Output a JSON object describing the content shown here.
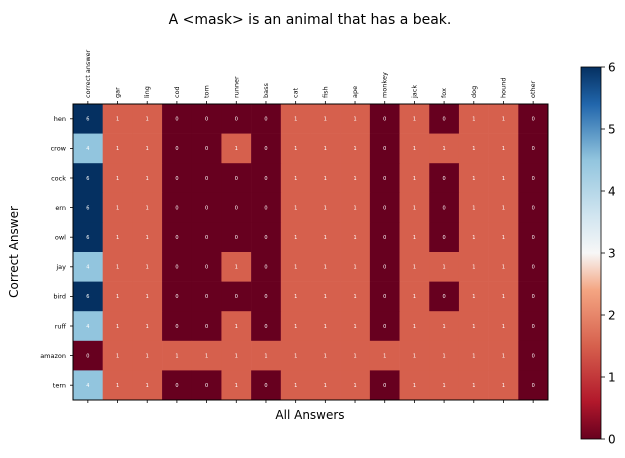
{
  "chart_data": {
    "type": "heatmap",
    "title": "A <mask> is an animal that has a beak.",
    "xlabel": "All Answers",
    "ylabel": "Correct Answer",
    "x_categories": [
      "correct answer",
      "gar",
      "ling",
      "cod",
      "tom",
      "runner",
      "bass",
      "cat",
      "fish",
      "ape",
      "monkey",
      "jack",
      "fox",
      "dog",
      "hound",
      "other"
    ],
    "y_categories": [
      "hen",
      "crow",
      "cock",
      "ern",
      "owl",
      "jay",
      "bird",
      "ruff",
      "amazon",
      "tern"
    ],
    "values": [
      [
        6,
        1,
        1,
        0,
        0,
        0,
        0,
        1,
        1,
        1,
        0,
        1,
        0,
        1,
        1,
        0
      ],
      [
        4,
        1,
        1,
        0,
        0,
        1,
        0,
        1,
        1,
        1,
        0,
        1,
        1,
        1,
        1,
        0
      ],
      [
        6,
        1,
        1,
        0,
        0,
        0,
        0,
        1,
        1,
        1,
        0,
        1,
        0,
        1,
        1,
        0
      ],
      [
        6,
        1,
        1,
        0,
        0,
        0,
        0,
        1,
        1,
        1,
        0,
        1,
        0,
        1,
        1,
        0
      ],
      [
        6,
        1,
        1,
        0,
        0,
        0,
        0,
        1,
        1,
        1,
        0,
        1,
        0,
        1,
        1,
        0
      ],
      [
        4,
        1,
        1,
        0,
        0,
        1,
        0,
        1,
        1,
        1,
        0,
        1,
        1,
        1,
        1,
        0
      ],
      [
        6,
        1,
        1,
        0,
        0,
        0,
        0,
        1,
        1,
        1,
        0,
        1,
        0,
        1,
        1,
        0
      ],
      [
        4,
        1,
        1,
        0,
        0,
        1,
        0,
        1,
        1,
        1,
        0,
        1,
        1,
        1,
        1,
        0
      ],
      [
        0,
        1,
        1,
        1,
        1,
        1,
        1,
        1,
        1,
        1,
        1,
        1,
        1,
        1,
        1,
        0
      ],
      [
        4,
        1,
        1,
        0,
        0,
        1,
        0,
        1,
        1,
        1,
        0,
        1,
        1,
        1,
        1,
        0
      ]
    ],
    "colorbar": {
      "min": 0,
      "max": 6,
      "ticks": [
        "0",
        "1",
        "2",
        "3",
        "4",
        "5",
        "6"
      ]
    },
    "colormap": "RdBu",
    "colors": {
      "0": "#67001f",
      "1": "#d6604d",
      "4": "#92c5de",
      "6": "#053061"
    },
    "grid": false
  }
}
